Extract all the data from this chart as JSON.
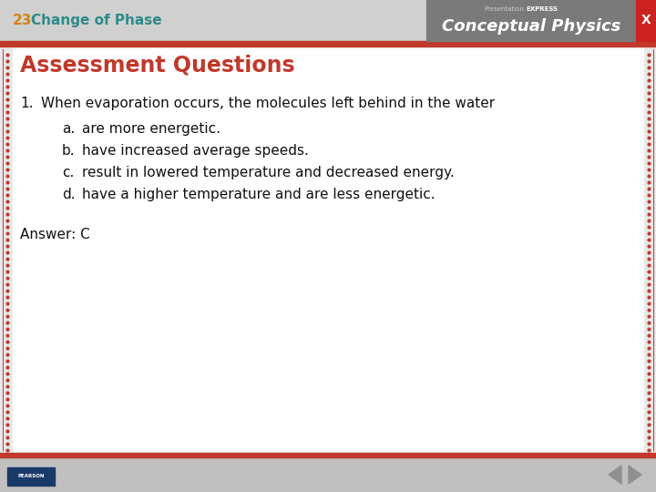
{
  "slide_number": "23",
  "slide_topic": "Change of Phase",
  "header_bg_color": "#d0d0d0",
  "header_teal_color": "#2e8b8b",
  "header_red_stripe_color": "#c0392b",
  "title_text": "Assessment Questions",
  "title_color": "#c0392b",
  "question": "When evaporation occurs, the molecules left behind in the water",
  "options": [
    "are more energetic.",
    "have increased average speeds.",
    "result in lowered temperature and decreased energy.",
    "have a higher temperature and are less energetic."
  ],
  "option_labels": [
    "a.",
    "b.",
    "c.",
    "d."
  ],
  "answer_text": "Answer: C",
  "body_bg_color": "#e8e8e8",
  "footer_bg_color": "#c0c0c0",
  "text_color": "#111111",
  "border_dot_color": "#c0392b",
  "header_number_color": "#d4820a",
  "conceptual_physics_bg": "#7a7a7a",
  "x_button_color": "#cc2222",
  "white": "#ffffff"
}
